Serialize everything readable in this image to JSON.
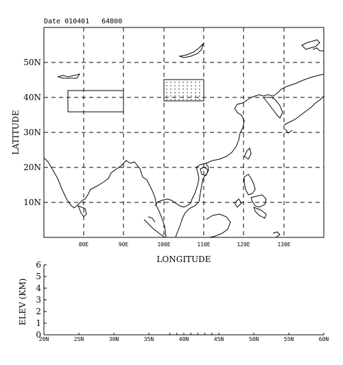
{
  "header": {
    "date_label": "Date 010401",
    "time_label": "64800"
  },
  "map": {
    "ylabel": "LATITUDE",
    "xlabel": "LONGITUDE",
    "lat_ticks": [
      "50N",
      "40N",
      "30N",
      "20N",
      "10N"
    ],
    "lon_ticks": [
      "80E",
      "90E",
      "100E",
      "110E",
      "120E",
      "130E"
    ],
    "lon_range": [
      70,
      140
    ],
    "lat_range": [
      0,
      60
    ],
    "regions": [
      {
        "name": "outlined box",
        "lon": [
          76,
          90
        ],
        "lat": [
          36,
          42
        ],
        "style": "outline"
      },
      {
        "name": "dotted box",
        "lon": [
          100,
          110
        ],
        "lat": [
          39,
          45
        ],
        "style": "dotted"
      }
    ]
  },
  "chart_data": {
    "type": "line",
    "title": "",
    "xlabel": "",
    "ylabel": "ELEV (KM)",
    "xticks": [
      "20N",
      "25N",
      "30N",
      "35N",
      "40N",
      "45N",
      "50N",
      "55N",
      "60N"
    ],
    "yticks": [
      "0",
      "1",
      "2",
      "3",
      "4",
      "5",
      "6"
    ],
    "xlim": [
      20,
      60
    ],
    "ylim": [
      0,
      6
    ],
    "series": [
      {
        "x": [
          38,
          39,
          40,
          41,
          42,
          43,
          44,
          45
        ],
        "values": [
          0.1,
          0.1,
          0.1,
          0.1,
          0.1,
          0.1,
          0.1,
          0.1
        ]
      }
    ]
  }
}
